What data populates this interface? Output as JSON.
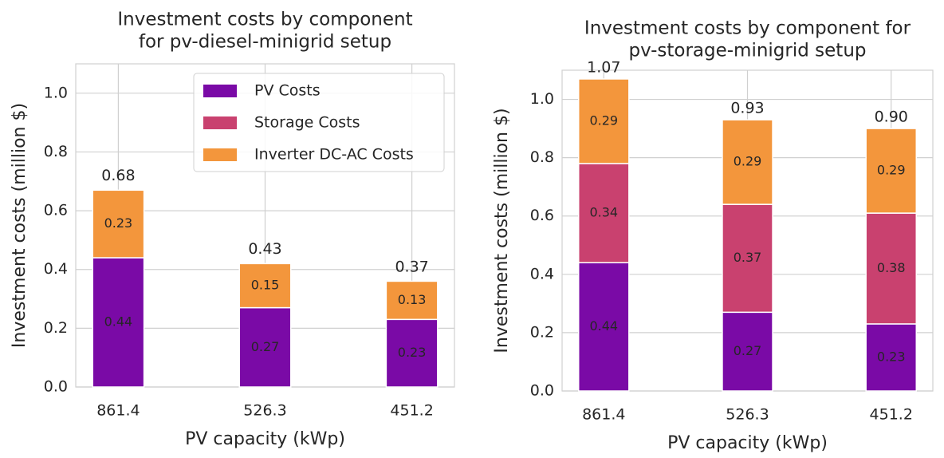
{
  "chart_data": [
    {
      "type": "stacked_bar",
      "title": [
        "Investment costs by component",
        "for pv-diesel-minigrid setup"
      ],
      "xlabel": "PV capacity (kWp)",
      "ylabel": "Investment costs (million $)",
      "categories": [
        "861.4",
        "526.3",
        "451.2"
      ],
      "series": [
        {
          "name": "PV Costs",
          "color": "#7a0aa6",
          "values": [
            0.44,
            0.27,
            0.23
          ]
        },
        {
          "name": "Storage Costs",
          "color": "#c9416f",
          "values": [
            0,
            0,
            0
          ]
        },
        {
          "name": "Inverter DC-AC Costs",
          "color": "#f3963c",
          "values": [
            0.23,
            0.15,
            0.13
          ]
        }
      ],
      "totals": [
        0.68,
        0.43,
        0.37
      ],
      "ylim": [
        0,
        1.1
      ],
      "yticks": [
        {
          "value": 0,
          "label": "0.0"
        },
        {
          "value": 0.2,
          "label": "0.2"
        },
        {
          "value": 0.4,
          "label": "0.4"
        },
        {
          "value": 0.6,
          "label": "0.6"
        },
        {
          "value": 0.8,
          "label": "0.8"
        },
        {
          "value": 1,
          "label": "1.0"
        }
      ],
      "grid": true,
      "legend": "upper right"
    },
    {
      "type": "stacked_bar",
      "title": [
        "Investment costs by component for",
        "pv-storage-minigrid setup"
      ],
      "xlabel": "PV capacity (kWp)",
      "ylabel": "Investment costs (million $)",
      "categories": [
        "861.4",
        "526.3",
        "451.2"
      ],
      "series": [
        {
          "name": "PV Costs",
          "color": "#7a0aa6",
          "values": [
            0.44,
            0.27,
            0.23
          ]
        },
        {
          "name": "Storage Costs",
          "color": "#c9416f",
          "values": [
            0.34,
            0.37,
            0.38
          ]
        },
        {
          "name": "Inverter DC-AC Costs",
          "color": "#f3963c",
          "values": [
            0.29,
            0.29,
            0.29
          ]
        }
      ],
      "totals": [
        1.07,
        0.93,
        0.9
      ],
      "total_labels": [
        "1.07",
        "0.93",
        "0.90"
      ],
      "ylim": [
        0,
        1.1
      ],
      "yticks": [
        {
          "value": 0,
          "label": "0.0"
        },
        {
          "value": 0.2,
          "label": "0.2"
        },
        {
          "value": 0.4,
          "label": "0.4"
        },
        {
          "value": 0.6,
          "label": "0.6"
        },
        {
          "value": 0.8,
          "label": "0.8"
        },
        {
          "value": 1,
          "label": "1.0"
        }
      ],
      "grid": true
    }
  ]
}
